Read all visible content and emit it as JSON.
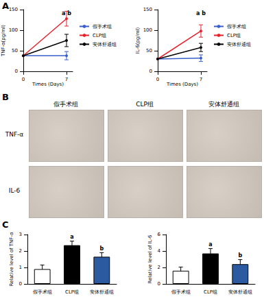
{
  "panel_labels": [
    "A",
    "B",
    "C"
  ],
  "panel_b": {
    "columns": [
      "假手术组",
      "CLP组",
      "安体舒通组"
    ],
    "rows": [
      "TNF-α",
      "IL-6"
    ]
  },
  "chart_data": [
    {
      "type": "line",
      "y_label": "TNF-α(pg/ml)",
      "x_label": "Times (Days)",
      "x": [
        0,
        7
      ],
      "xlim": [
        0,
        8
      ],
      "xticks": [
        0,
        7
      ],
      "ylim": [
        0,
        150
      ],
      "yticks": [
        0,
        50,
        100,
        150
      ],
      "legend": "right",
      "grid": false,
      "annotations": [
        {
          "text": "a b",
          "x": 7
        }
      ],
      "series": [
        {
          "name": "假手术组",
          "color": "#3a5fcd",
          "marker": "circle",
          "values": [
            38,
            38
          ],
          "errors": [
            null,
            10
          ]
        },
        {
          "name": "CLP组",
          "color": "#e8202a",
          "marker": "circle",
          "values": [
            38,
            128
          ],
          "errors": [
            null,
            18
          ]
        },
        {
          "name": "安体舒通组",
          "color": "#000000",
          "marker": "circle",
          "values": [
            38,
            75
          ],
          "errors": [
            null,
            15
          ]
        }
      ]
    },
    {
      "type": "line",
      "y_label": "IL-6(pg/ml)",
      "x_label": "Times (Days)",
      "x": [
        0,
        7
      ],
      "xlim": [
        0,
        8
      ],
      "xticks": [
        0,
        7
      ],
      "ylim": [
        0,
        150
      ],
      "yticks": [
        0,
        50,
        100,
        150
      ],
      "legend": "right",
      "grid": false,
      "annotations": [
        {
          "text": "a b",
          "x": 7
        }
      ],
      "series": [
        {
          "name": "假手术组",
          "color": "#3a5fcd",
          "marker": "circle",
          "values": [
            30,
            32
          ],
          "errors": [
            null,
            8
          ]
        },
        {
          "name": "CLP组",
          "color": "#e8202a",
          "marker": "circle",
          "values": [
            30,
            98
          ],
          "errors": [
            null,
            15
          ]
        },
        {
          "name": "安体舒通组",
          "color": "#000000",
          "marker": "circle",
          "values": [
            30,
            58
          ],
          "errors": [
            null,
            10
          ]
        }
      ]
    },
    {
      "type": "bar",
      "y_label": "Relative level of TNF-α",
      "categories": [
        "假手术组",
        "CLP组",
        "安体舒通组"
      ],
      "values": [
        0.9,
        2.35,
        1.65
      ],
      "errors": [
        0.25,
        0.25,
        0.25
      ],
      "value_annotations": [
        null,
        "a",
        "b"
      ],
      "colors": [
        "#ffffff",
        "#000000",
        "#2c5aa0"
      ],
      "ylim": [
        0,
        3
      ],
      "yticks": [
        0,
        1,
        2,
        3
      ],
      "grid": false
    },
    {
      "type": "bar",
      "y_label": "Relative level of IL-6",
      "categories": [
        "假手术组",
        "CLP组",
        "安体舒通组"
      ],
      "values": [
        1.6,
        3.7,
        2.4
      ],
      "errors": [
        0.45,
        0.6,
        0.55
      ],
      "value_annotations": [
        null,
        "a",
        "b"
      ],
      "colors": [
        "#ffffff",
        "#000000",
        "#2c5aa0"
      ],
      "ylim": [
        0,
        6
      ],
      "yticks": [
        0,
        2,
        4,
        6
      ],
      "grid": false
    }
  ]
}
